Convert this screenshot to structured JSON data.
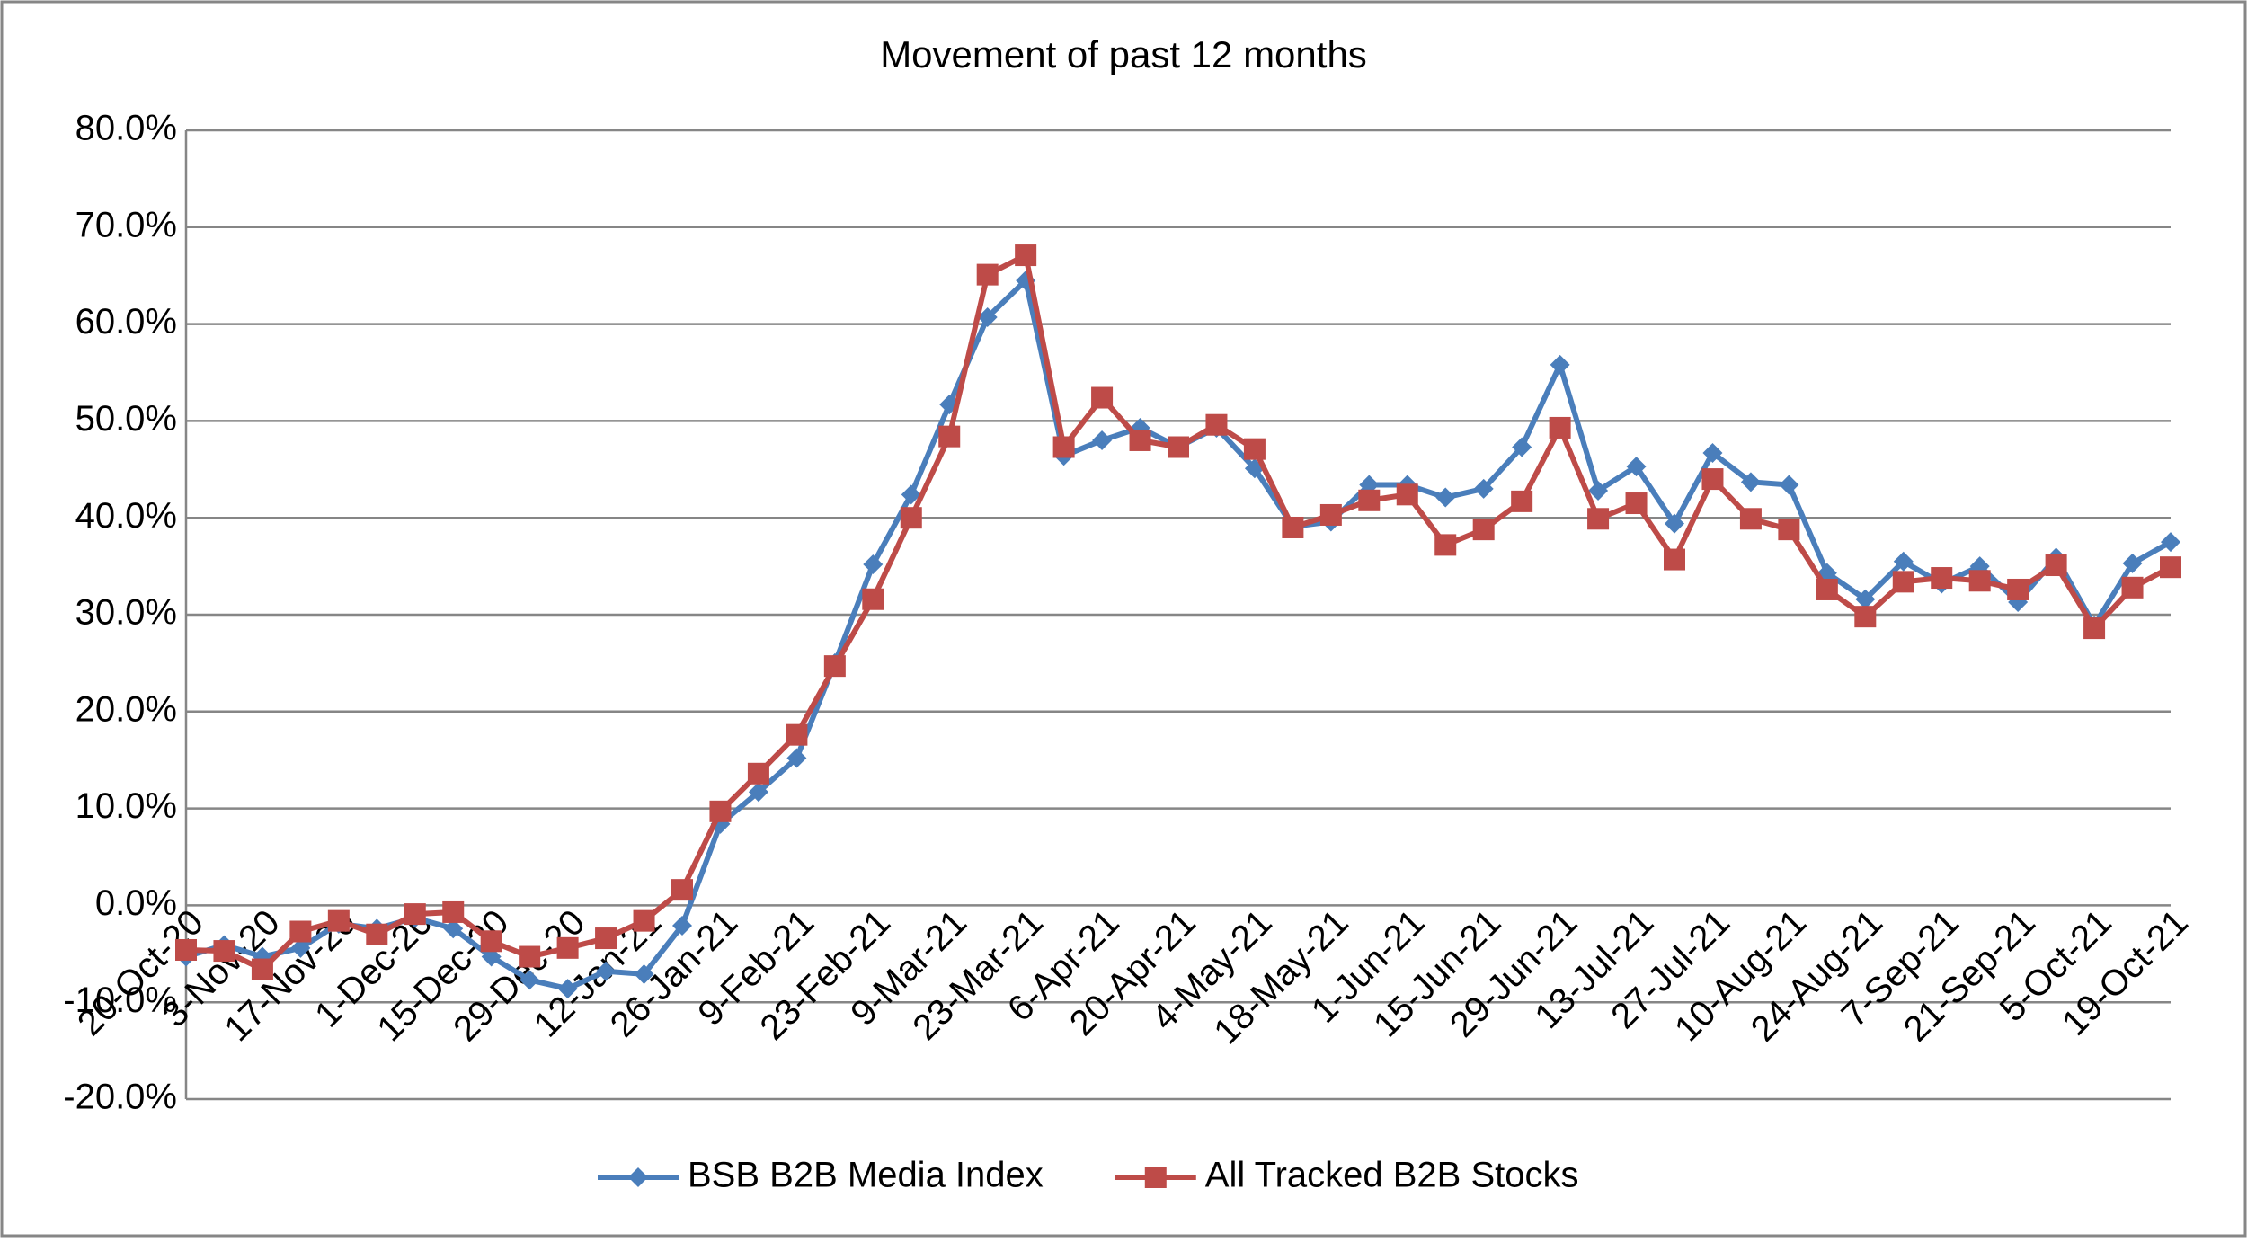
{
  "chart_data": {
    "type": "line",
    "title": "Movement of past 12 months",
    "categories": [
      "20-Oct-20",
      null,
      "3-Nov-20",
      null,
      "17-Nov-20",
      null,
      "1-Dec-20",
      null,
      "15-Dec-20",
      null,
      "29-Dec-20",
      null,
      "12-Jan-21",
      null,
      "26-Jan-21",
      null,
      "9-Feb-21",
      null,
      "23-Feb-21",
      null,
      "9-Mar-21",
      null,
      "23-Mar-21",
      null,
      "6-Apr-21",
      null,
      "20-Apr-21",
      null,
      "4-May-21",
      null,
      "18-May-21",
      null,
      "1-Jun-21",
      null,
      "15-Jun-21",
      null,
      "29-Jun-21",
      null,
      "13-Jul-21",
      null,
      "27-Jul-21",
      null,
      "10-Aug-21",
      null,
      "24-Aug-21",
      null,
      "7-Sep-21",
      null,
      "21-Sep-21",
      null,
      "5-Oct-21",
      null,
      "19-Oct-21"
    ],
    "series": [
      {
        "name": "BSB B2B Media Index",
        "color": "#4a7ebb",
        "marker": "diamond",
        "values": [
          -5.3,
          -4.1,
          -5.3,
          -4.4,
          -1.9,
          -2.4,
          -1.3,
          -2.4,
          -5.3,
          -7.7,
          -8.6,
          -6.8,
          -7.1,
          -2.1,
          8.4,
          11.7,
          15.2,
          25.0,
          35.2,
          42.4,
          51.7,
          60.7,
          64.5,
          46.4,
          48.0,
          49.3,
          47.3,
          49.3,
          45.1,
          39.1,
          39.6,
          43.4,
          43.4,
          42.1,
          43.0,
          47.3,
          55.8,
          42.8,
          45.3,
          39.4,
          46.7,
          43.7,
          43.4,
          34.3,
          31.6,
          35.5,
          33.2,
          35.0,
          31.3,
          35.9,
          28.9,
          35.3,
          37.5
        ]
      },
      {
        "name": "All Tracked B2B Stocks",
        "color": "#be4b48",
        "marker": "square",
        "values": [
          -4.6,
          -4.7,
          -6.6,
          -2.7,
          -1.6,
          -3.0,
          -0.9,
          -0.7,
          -3.7,
          -5.3,
          -4.4,
          -3.4,
          -1.6,
          1.6,
          9.7,
          13.6,
          17.6,
          24.7,
          31.6,
          40.0,
          48.4,
          65.1,
          67.1,
          47.3,
          52.4,
          48.0,
          47.3,
          49.6,
          47.1,
          39.0,
          40.3,
          41.8,
          42.4,
          37.2,
          38.8,
          41.7,
          49.3,
          39.9,
          41.5,
          35.7,
          44.0,
          39.9,
          38.8,
          32.6,
          29.8,
          33.4,
          33.8,
          33.5,
          32.6,
          35.1,
          28.6,
          32.8,
          34.9
        ]
      }
    ],
    "ylim": [
      -20,
      80
    ],
    "yticks": [
      {
        "value": -20,
        "label": "-20.0%"
      },
      {
        "value": -10,
        "label": "-10.0%"
      },
      {
        "value": 0,
        "label": "0.0%"
      },
      {
        "value": 10,
        "label": "10.0%"
      },
      {
        "value": 20,
        "label": "20.0%"
      },
      {
        "value": 30,
        "label": "30.0%"
      },
      {
        "value": 40,
        "label": "40.0%"
      },
      {
        "value": 50,
        "label": "50.0%"
      },
      {
        "value": 60,
        "label": "60.0%"
      },
      {
        "value": 70,
        "label": "70.0%"
      },
      {
        "value": 80,
        "label": "80.0%"
      }
    ],
    "grid": true,
    "legend": "bottom"
  }
}
